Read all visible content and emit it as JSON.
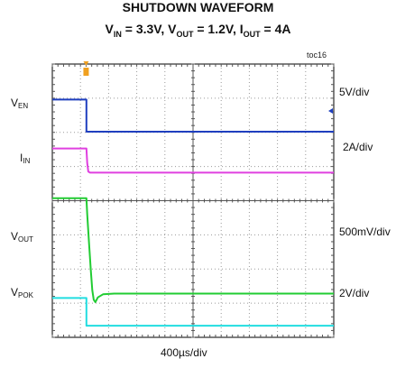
{
  "chart_data": {
    "type": "line",
    "title": {
      "line1": "SHUTDOWN WAVEFORM",
      "line2": {
        "v_in_sub": "IN",
        "v_in_value": " = 3.3V, V",
        "v_out_sub": "OUT",
        "v_out_value": " = 1.2V, I",
        "i_out_sub": "OUT",
        "i_out_value": " = 4A"
      }
    },
    "figure_tag": "toc16",
    "xlabel": "400µs/div",
    "x_divisions": 10,
    "y_divisions": 8,
    "grid": true,
    "trigger_marker_division": 1.2,
    "series": [
      {
        "name": "V",
        "name_sub": "EN",
        "scale": "5V/div",
        "color": "#1f3fbf",
        "x_div": [
          0,
          1.21,
          1.21,
          10
        ],
        "y_div": [
          6.96,
          6.96,
          6.02,
          6.02
        ]
      },
      {
        "name": "I",
        "name_sub": "IN",
        "scale": "2A/div",
        "color": "#e040e0",
        "x_div": [
          0,
          1.21,
          1.24,
          1.28,
          1.34,
          10
        ],
        "y_div": [
          5.53,
          5.53,
          5.1,
          4.85,
          4.82,
          4.82
        ]
      },
      {
        "name": "V",
        "name_sub": "OUT",
        "scale": "500mV/div",
        "color": "#22cc33",
        "x_div": [
          0,
          1.21,
          1.24,
          1.3,
          1.37,
          1.42,
          1.47,
          1.53,
          1.62,
          1.8,
          2.2,
          10
        ],
        "y_div": [
          4.07,
          4.07,
          3.6,
          2.8,
          1.95,
          1.38,
          1.1,
          1.03,
          1.17,
          1.26,
          1.28,
          1.28
        ]
      },
      {
        "name": "V",
        "name_sub": "POK",
        "scale": "2V/div",
        "color": "#22dde0",
        "x_div": [
          0,
          1.21,
          1.21,
          10
        ],
        "y_div": [
          1.15,
          1.15,
          0.34,
          0.34
        ]
      }
    ]
  }
}
